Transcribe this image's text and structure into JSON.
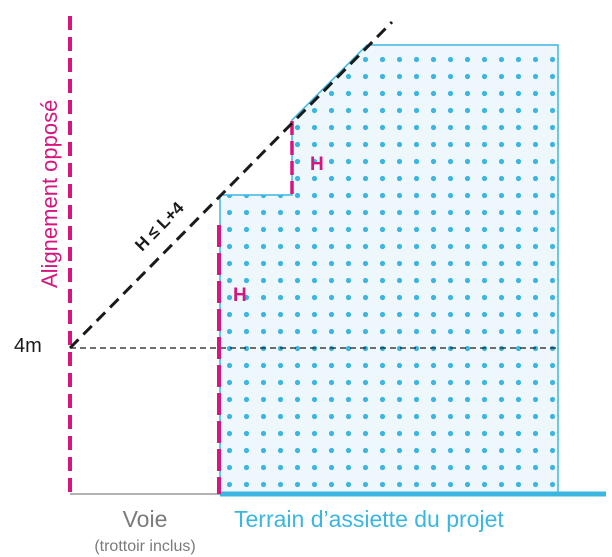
{
  "labels": {
    "alignement_oppose": "Alignement opposé",
    "height_rule": "H ≤ L+4",
    "h_upper": "H",
    "h_lower": "H",
    "four_m": "4m",
    "voie": "Voie",
    "trottoir": "(trottoir inclus)",
    "terrain": "Terrain d’assiette du projet"
  },
  "colors": {
    "magenta": "#d6157f",
    "cyan": "#3bb6e0",
    "fill_light": "#eef8fc",
    "black": "#1a1a1a",
    "grey": "#7b7b7b"
  }
}
